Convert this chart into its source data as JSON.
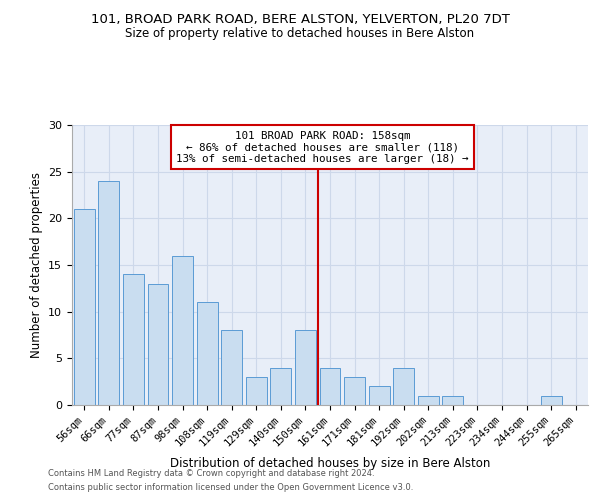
{
  "title1": "101, BROAD PARK ROAD, BERE ALSTON, YELVERTON, PL20 7DT",
  "title2": "Size of property relative to detached houses in Bere Alston",
  "xlabel": "Distribution of detached houses by size in Bere Alston",
  "ylabel": "Number of detached properties",
  "bar_labels": [
    "56sqm",
    "66sqm",
    "77sqm",
    "87sqm",
    "98sqm",
    "108sqm",
    "119sqm",
    "129sqm",
    "140sqm",
    "150sqm",
    "161sqm",
    "171sqm",
    "181sqm",
    "192sqm",
    "202sqm",
    "213sqm",
    "223sqm",
    "234sqm",
    "244sqm",
    "255sqm",
    "265sqm"
  ],
  "bar_values": [
    21,
    24,
    14,
    13,
    16,
    11,
    8,
    3,
    4,
    8,
    4,
    3,
    2,
    4,
    1,
    1,
    0,
    0,
    0,
    1,
    0
  ],
  "bar_color": "#c9ddf0",
  "bar_edge_color": "#5b9bd5",
  "vline_color": "#cc0000",
  "annotation_title": "101 BROAD PARK ROAD: 158sqm",
  "annotation_line1": "← 86% of detached houses are smaller (118)",
  "annotation_line2": "13% of semi-detached houses are larger (18) →",
  "annotation_box_color": "#ffffff",
  "annotation_box_edge": "#cc0000",
  "grid_color": "#cdd8ea",
  "background_color": "#e8eef8",
  "ylim": [
    0,
    30
  ],
  "yticks": [
    0,
    5,
    10,
    15,
    20,
    25,
    30
  ],
  "footer1": "Contains HM Land Registry data © Crown copyright and database right 2024.",
  "footer2": "Contains public sector information licensed under the Open Government Licence v3.0."
}
